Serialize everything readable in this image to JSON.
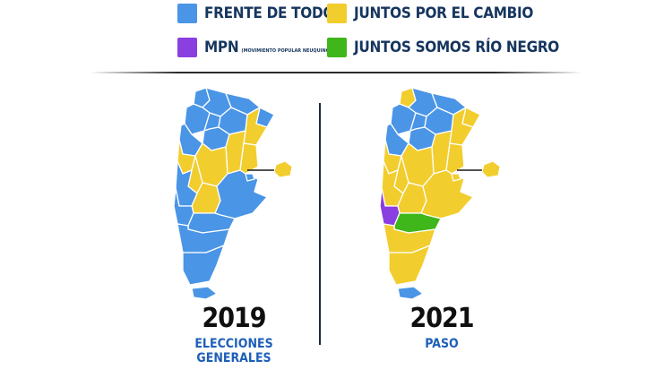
{
  "colors": {
    "frente": "#4a95e6",
    "juntos": "#f2cd2e",
    "mpn": "#8a3fe0",
    "rionegro": "#3fb61a",
    "border": "#ffffff",
    "label": "#16355e",
    "caption": "#1e5fb8"
  },
  "legend": {
    "frente_label": "FRENTE DE TODOS",
    "juntos_label": "JUNTOS POR EL CAMBIO",
    "mpn_label": "MPN",
    "mpn_sublabel": "(MOVIMIENTO POPULAR NEUQUINO)",
    "rionegro_label": "JUNTOS SOMOS RÍO NEGRO"
  },
  "maps": [
    {
      "year": "2019",
      "caption_line1": "ELECCIONES",
      "caption_line2": "GENERALES"
    },
    {
      "year": "2021",
      "caption_line1": "PASO",
      "caption_line2": ""
    }
  ]
}
